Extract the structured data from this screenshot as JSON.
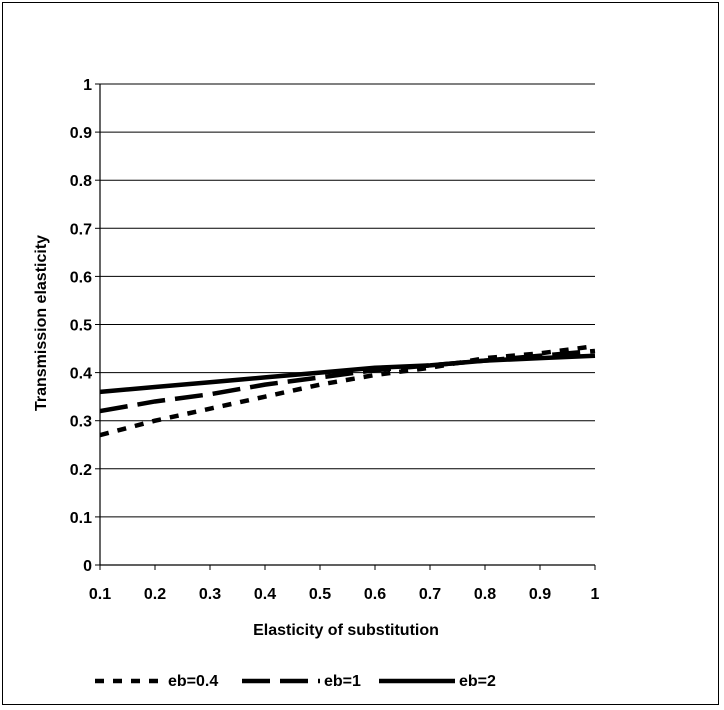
{
  "chart_data": {
    "type": "line",
    "title": "",
    "xlabel": "Elasticity of substitution",
    "ylabel": "Transmission elasticity",
    "xlim": [
      0.1,
      1
    ],
    "ylim": [
      0,
      1
    ],
    "x_ticks": [
      "0.1",
      "0.2",
      "0.3",
      "0.4",
      "0.5",
      "0.6",
      "0.7",
      "0.8",
      "0.9",
      "1"
    ],
    "y_ticks": [
      "0",
      "0.1",
      "0.2",
      "0.3",
      "0.4",
      "0.5",
      "0.6",
      "0.7",
      "0.8",
      "0.9",
      "1"
    ],
    "grid": "horizontal",
    "legend_position": "bottom",
    "x": [
      0.1,
      0.2,
      0.3,
      0.4,
      0.5,
      0.6,
      0.7,
      0.8,
      0.9,
      1.0
    ],
    "series": [
      {
        "name": "eb=0.4",
        "style": "dotted",
        "color": "#000000",
        "values": [
          0.27,
          0.3,
          0.325,
          0.35,
          0.375,
          0.395,
          0.41,
          0.43,
          0.44,
          0.455
        ]
      },
      {
        "name": "eb=1",
        "style": "dashed",
        "color": "#000000",
        "values": [
          0.32,
          0.34,
          0.355,
          0.375,
          0.39,
          0.405,
          0.415,
          0.425,
          0.435,
          0.445
        ]
      },
      {
        "name": "eb=2",
        "style": "solid",
        "color": "#000000",
        "values": [
          0.36,
          0.37,
          0.38,
          0.39,
          0.4,
          0.41,
          0.415,
          0.425,
          0.43,
          0.435
        ]
      }
    ]
  }
}
